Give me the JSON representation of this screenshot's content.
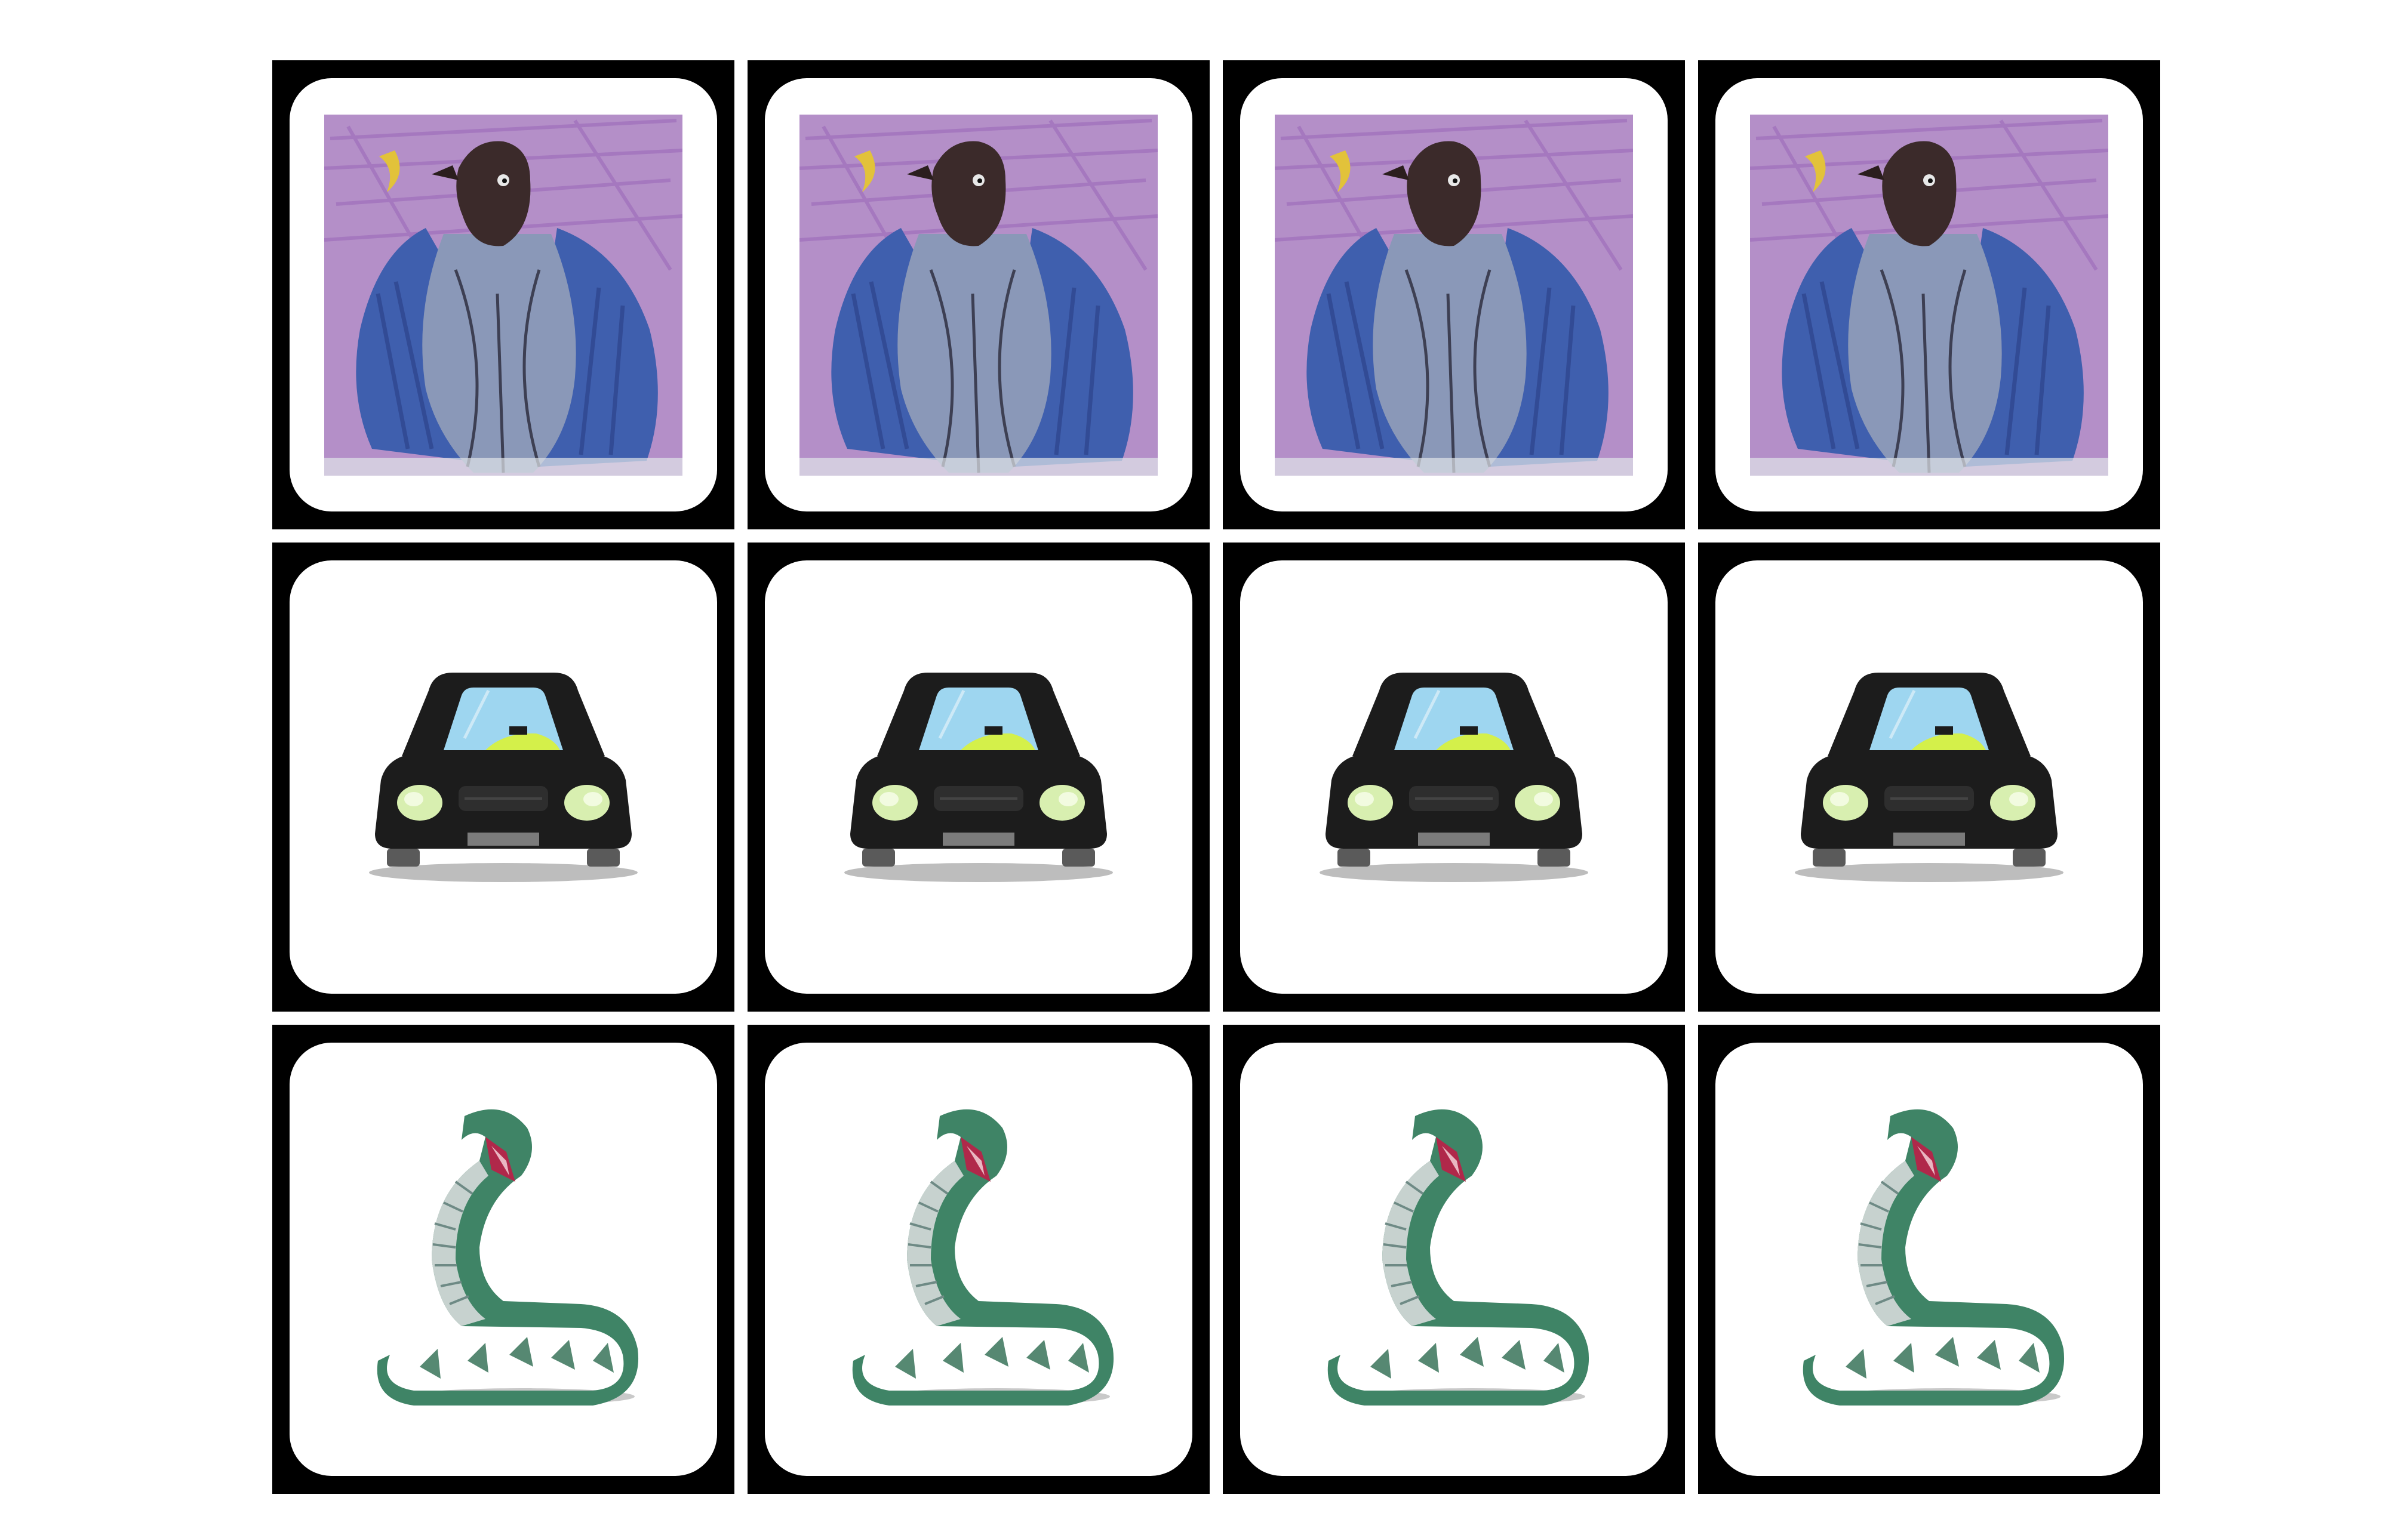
{
  "game": {
    "type": "memory-card-grid",
    "rows": 3,
    "columns": 4,
    "cards": [
      {
        "icon": "crayon-bird-drawing-icon"
      },
      {
        "icon": "crayon-bird-drawing-icon"
      },
      {
        "icon": "crayon-bird-drawing-icon"
      },
      {
        "icon": "crayon-bird-drawing-icon"
      },
      {
        "icon": "black-car-icon"
      },
      {
        "icon": "black-car-icon"
      },
      {
        "icon": "black-car-icon"
      },
      {
        "icon": "black-car-icon"
      },
      {
        "icon": "green-snake-icon"
      },
      {
        "icon": "green-snake-icon"
      },
      {
        "icon": "green-snake-icon"
      },
      {
        "icon": "green-snake-icon"
      }
    ]
  },
  "colors": {
    "card_border": "#000000",
    "card_face": "#ffffff",
    "bird_background": "#b48fc8",
    "bird_body": "#6f7fa8",
    "car_body": "#1c1c1c",
    "car_windshield": "#9ed6f0",
    "car_headlight": "#d8efb0",
    "snake_body": "#3f8466",
    "snake_belly": "#c7d2cf"
  }
}
